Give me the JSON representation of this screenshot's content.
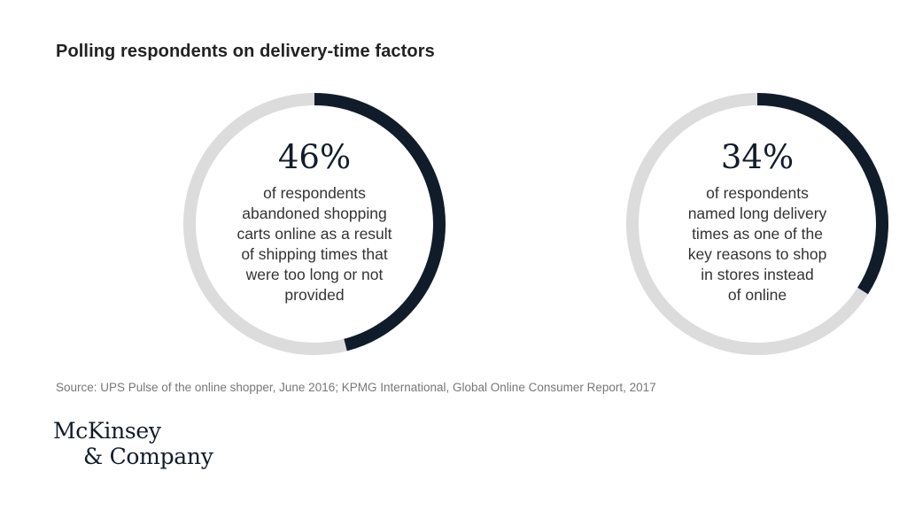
{
  "title": "Polling respondents on delivery-time factors",
  "source": "Source: UPS Pulse of the online shopper, June 2016; KPMG International, Global Online Consumer Report, 2017",
  "logo": {
    "line1": "McKinsey",
    "line2": "& Company"
  },
  "colors": {
    "filled": "#111c2b",
    "track": "#dcdcdc"
  },
  "chart_data": [
    {
      "type": "pie",
      "variant": "donut",
      "value": 46,
      "value_label": "46%",
      "description": "of respondents abandoned shopping carts online as a result of shipping times that were too long or not provided",
      "description_lines": [
        "of respondents",
        "abandoned shopping",
        "carts online as a result",
        "of shipping times that",
        "were too long or not",
        "provided"
      ]
    },
    {
      "type": "pie",
      "variant": "donut",
      "value": 34,
      "value_label": "34%",
      "description": "of respondents named long delivery times as one of the key reasons to shop in stores instead of online",
      "description_lines": [
        "of respondents",
        "named long delivery",
        "times as one of the",
        "key reasons to shop",
        "in stores instead",
        "of online"
      ]
    }
  ]
}
